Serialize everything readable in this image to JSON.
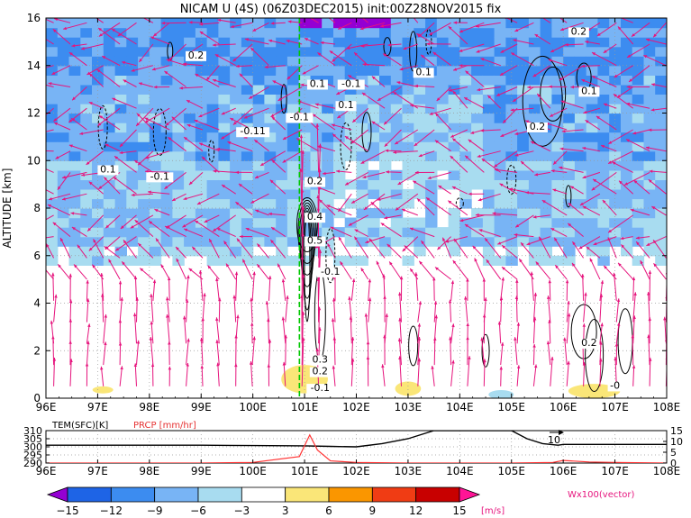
{
  "chart_data": [
    {
      "type": "heatmap",
      "title": "NICAM U (4S) (06Z03DEC2015) init:00Z28NOV2015 fix",
      "ylabel": "ALTITUDE [km]",
      "xlim": [
        96,
        108
      ],
      "ylim": [
        0,
        16
      ],
      "x_ticks": [
        96,
        97,
        98,
        99,
        100,
        101,
        102,
        103,
        104,
        105,
        106,
        107,
        108
      ],
      "x_tick_labels": [
        "96E",
        "97E",
        "98E",
        "99E",
        "100E",
        "101E",
        "102E",
        "103E",
        "104E",
        "105E",
        "106E",
        "107E",
        "108E"
      ],
      "y_ticks": [
        0,
        2,
        4,
        6,
        8,
        10,
        12,
        14,
        16
      ],
      "y_tick_labels": [
        "0",
        "2",
        "4",
        "6",
        "8",
        "10",
        "12",
        "14",
        "16"
      ],
      "grid": true,
      "reference_line_x": 100.9,
      "contour_labels": [
        {
          "x": 98.9,
          "y": 14.3,
          "text": "0.2"
        },
        {
          "x": 103.3,
          "y": 13.6,
          "text": "0.1"
        },
        {
          "x": 101.25,
          "y": 13.1,
          "text": "0.1"
        },
        {
          "x": 101.9,
          "y": 13.1,
          "text": "-0.1"
        },
        {
          "x": 101.8,
          "y": 12.2,
          "text": "0.1"
        },
        {
          "x": 100.0,
          "y": 11.1,
          "text": "-0.11"
        },
        {
          "x": 100.9,
          "y": 11.7,
          "text": "-0.1"
        },
        {
          "x": 97.2,
          "y": 9.5,
          "text": "0.1"
        },
        {
          "x": 98.2,
          "y": 9.2,
          "text": "-0.1"
        },
        {
          "x": 101.2,
          "y": 9.0,
          "text": "0.2"
        },
        {
          "x": 101.2,
          "y": 7.5,
          "text": "0.4"
        },
        {
          "x": 101.2,
          "y": 6.5,
          "text": "0.5"
        },
        {
          "x": 101.5,
          "y": 5.2,
          "text": "-0.1"
        },
        {
          "x": 105.5,
          "y": 11.3,
          "text": "0.2"
        },
        {
          "x": 106.5,
          "y": 12.8,
          "text": "0.1"
        },
        {
          "x": 106.3,
          "y": 15.3,
          "text": "0.2"
        },
        {
          "x": 101.3,
          "y": 1.5,
          "text": "0.3"
        },
        {
          "x": 101.3,
          "y": 1.0,
          "text": "0.2"
        },
        {
          "x": 101.3,
          "y": 0.3,
          "text": "-0.1"
        },
        {
          "x": 106.5,
          "y": 2.2,
          "text": "0.2"
        },
        {
          "x": 107.0,
          "y": 0.4,
          "text": "-0"
        }
      ],
      "vector_legend": "Wx100(vector)"
    },
    {
      "type": "line",
      "left_axis_label": "TEM(SFC)[K]",
      "right_axis_label": "PRCP [mm/hr]",
      "left_ticks": [
        "310",
        "305",
        "300",
        "295",
        "290"
      ],
      "right_ticks": [
        "15",
        "10",
        "5",
        "0"
      ],
      "x_tick_labels": [
        "96E",
        "97E",
        "98E",
        "99E",
        "100E",
        "101E",
        "102E",
        "103E",
        "104E",
        "105E",
        "106E",
        "107E",
        "108E"
      ],
      "annotation": "10",
      "series": [
        {
          "name": "TEM(SFC)[K]",
          "color": "#000000",
          "x": [
            96,
            97,
            98,
            99,
            100,
            101,
            101.5,
            102,
            102.5,
            103,
            103.5,
            104,
            104.5,
            105,
            105.3,
            105.6,
            105.9,
            106,
            106.5,
            107,
            107.5,
            108
          ],
          "values": [
            301,
            301,
            301,
            301,
            300.8,
            300.6,
            300.3,
            300,
            302,
            305,
            310,
            310,
            310,
            310,
            305,
            302,
            301,
            301.5,
            301.5,
            301.5,
            301.5,
            301.5
          ]
        },
        {
          "name": "PRCP [mm/hr]",
          "color": "#ff3333",
          "x": [
            96,
            97,
            98,
            99,
            100,
            100.9,
            101.1,
            101.25,
            101.5,
            102,
            103,
            104,
            105,
            105.8,
            106,
            106.5,
            107,
            108
          ],
          "values": [
            0,
            0,
            0,
            0,
            0.3,
            3,
            13,
            6,
            1,
            0.3,
            0,
            0,
            0,
            0.3,
            1.2,
            0.5,
            0.3,
            0
          ]
        }
      ]
    }
  ],
  "colorbar": {
    "bounds": [
      "-15",
      "-12",
      "-9",
      "-6",
      "-3",
      "3",
      "6",
      "9",
      "12",
      "15"
    ],
    "unit": "[m/s]",
    "colors": [
      "#9400d3",
      "#1e64e6",
      "#3c8cf0",
      "#78b4f5",
      "#a8dcf0",
      "#ffffff",
      "#fae678",
      "#fa9600",
      "#f03c14",
      "#c80000",
      "#ff1496"
    ]
  },
  "field_colors": {
    "vector": "#e6147d",
    "contour": "#000000",
    "grid": "#999999",
    "reference_line": "#00c800"
  }
}
